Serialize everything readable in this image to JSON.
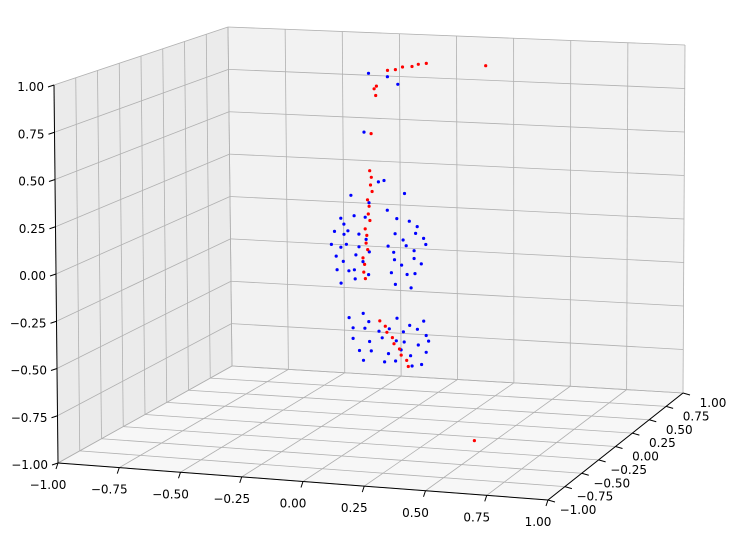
{
  "chart_data": {
    "type": "scatter3d",
    "title": "",
    "xlabel": "",
    "ylabel": "",
    "zlabel": "",
    "xlim": [
      -1,
      1
    ],
    "ylim": [
      -1,
      1
    ],
    "zlim": [
      -1,
      1
    ],
    "grid": true,
    "x_ticks": [
      "−1.00",
      "−0.75",
      "−0.50",
      "−0.25",
      "0.00",
      "0.25",
      "0.50",
      "0.75",
      "1.00"
    ],
    "y_ticks": [
      "−1.00",
      "−0.75",
      "−0.50",
      "−0.25",
      "0.00",
      "0.25",
      "0.50",
      "0.75",
      "1.00"
    ],
    "z_ticks": [
      "−1.00",
      "−0.75",
      "−0.50",
      "−0.25",
      "0.00",
      "0.25",
      "0.50",
      "0.75",
      "1.00"
    ],
    "series": [
      {
        "color": "#0000ff",
        "points": [
          [
            -0.05,
            0.02,
            0.95
          ],
          [
            0.02,
            0.05,
            0.93
          ],
          [
            0.08,
            0.0,
            0.9
          ],
          [
            -0.08,
            0.05,
            0.62
          ],
          [
            -0.02,
            0.05,
            0.35
          ],
          [
            0.02,
            0.0,
            0.37
          ],
          [
            -0.12,
            0.0,
            0.28
          ],
          [
            0.1,
            0.02,
            0.3
          ],
          [
            0.05,
            -0.05,
            0.22
          ],
          [
            -0.05,
            0.02,
            0.24
          ],
          [
            -0.18,
            0.05,
            0.14
          ],
          [
            -0.15,
            0.0,
            0.12
          ],
          [
            -0.12,
            0.04,
            0.16
          ],
          [
            -0.08,
            0.06,
            0.15
          ],
          [
            0.12,
            0.02,
            0.15
          ],
          [
            0.08,
            -0.02,
            0.17
          ],
          [
            0.15,
            0.03,
            0.12
          ],
          [
            -0.2,
            0.03,
            0.07
          ],
          [
            -0.17,
            0.06,
            0.05
          ],
          [
            -0.14,
            0.02,
            0.08
          ],
          [
            -0.1,
            0.04,
            0.06
          ],
          [
            -0.06,
            0.01,
            0.04
          ],
          [
            0.05,
            0.05,
            0.07
          ],
          [
            0.1,
            0.0,
            0.05
          ],
          [
            0.14,
            0.04,
            0.08
          ],
          [
            0.18,
            0.02,
            0.06
          ],
          [
            -0.21,
            0.02,
            0.0
          ],
          [
            -0.18,
            0.05,
            -0.02
          ],
          [
            -0.14,
            0.0,
            0.01
          ],
          [
            -0.1,
            0.04,
            -0.01
          ],
          [
            -0.05,
            0.02,
            -0.03
          ],
          [
            0.02,
            0.05,
            0.0
          ],
          [
            0.06,
            0.0,
            -0.02
          ],
          [
            0.1,
            0.04,
            0.01
          ],
          [
            0.14,
            0.02,
            -0.01
          ],
          [
            0.18,
            0.05,
            0.02
          ],
          [
            -0.2,
            0.05,
            -0.07
          ],
          [
            -0.16,
            0.02,
            -0.09
          ],
          [
            -0.12,
            0.06,
            -0.06
          ],
          [
            -0.07,
            0.0,
            -0.08
          ],
          [
            0.05,
            0.04,
            -0.07
          ],
          [
            0.09,
            0.01,
            -0.09
          ],
          [
            0.13,
            0.05,
            -0.06
          ],
          [
            0.17,
            0.02,
            -0.08
          ],
          [
            -0.19,
            0.03,
            -0.14
          ],
          [
            -0.15,
            0.06,
            -0.15
          ],
          [
            -0.11,
            0.01,
            -0.13
          ],
          [
            -0.06,
            0.04,
            -0.16
          ],
          [
            0.04,
            0.03,
            -0.14
          ],
          [
            0.1,
            0.05,
            -0.15
          ],
          [
            0.15,
            0.0,
            -0.13
          ],
          [
            -0.17,
            0.02,
            -0.21
          ],
          [
            -0.12,
            0.05,
            -0.19
          ],
          [
            0.06,
            0.02,
            -0.2
          ],
          [
            0.12,
            0.04,
            -0.22
          ],
          [
            -0.14,
            0.03,
            -0.4
          ],
          [
            -0.09,
            0.06,
            -0.38
          ],
          [
            -0.05,
            0.01,
            -0.41
          ],
          [
            0.06,
            0.04,
            -0.39
          ],
          [
            0.12,
            0.02,
            -0.42
          ],
          [
            0.17,
            0.05,
            -0.4
          ],
          [
            -0.13,
            0.05,
            -0.46
          ],
          [
            -0.07,
            0.02,
            -0.45
          ],
          [
            -0.02,
            0.05,
            -0.47
          ],
          [
            0.04,
            0.0,
            -0.44
          ],
          [
            0.09,
            0.03,
            -0.46
          ],
          [
            0.14,
            0.06,
            -0.45
          ],
          [
            0.19,
            0.02,
            -0.47
          ],
          [
            -0.12,
            0.02,
            -0.51
          ],
          [
            -0.06,
            0.05,
            -0.53
          ],
          [
            0.0,
            0.03,
            -0.5
          ],
          [
            0.05,
            0.06,
            -0.52
          ],
          [
            0.1,
            0.01,
            -0.51
          ],
          [
            0.15,
            0.04,
            -0.53
          ],
          [
            0.2,
            0.02,
            -0.5
          ],
          [
            -0.1,
            0.04,
            -0.58
          ],
          [
            -0.04,
            0.01,
            -0.57
          ],
          [
            0.02,
            0.05,
            -0.59
          ],
          [
            0.08,
            0.03,
            -0.56
          ],
          [
            0.13,
            0.0,
            -0.58
          ],
          [
            0.18,
            0.05,
            -0.57
          ],
          [
            -0.08,
            0.03,
            -0.63
          ],
          [
            0.0,
            0.06,
            -0.64
          ],
          [
            0.06,
            0.02,
            -0.62
          ],
          [
            0.12,
            0.05,
            -0.65
          ],
          [
            0.17,
            0.02,
            -0.63
          ]
        ]
      },
      {
        "color": "#ff0000",
        "points": [
          [
            0.2,
            0.0,
            1.02
          ],
          [
            0.14,
            0.0,
            1.0
          ],
          [
            0.16,
            0.02,
            1.01
          ],
          [
            0.09,
            0.03,
            0.99
          ],
          [
            0.07,
            0.0,
            0.98
          ],
          [
            0.03,
            0.02,
            0.97
          ],
          [
            0.45,
            0.0,
            1.02
          ],
          [
            -0.02,
            0.03,
            0.88
          ],
          [
            -0.02,
            0.0,
            0.87
          ],
          [
            -0.02,
            0.02,
            0.83
          ],
          [
            -0.04,
            0.02,
            0.62
          ],
          [
            -0.04,
            0.0,
            0.42
          ],
          [
            -0.04,
            0.02,
            0.38
          ],
          [
            -0.04,
            0.01,
            0.34
          ],
          [
            -0.04,
            0.03,
            0.3
          ],
          [
            -0.05,
            0.0,
            0.26
          ],
          [
            -0.05,
            0.02,
            0.22
          ],
          [
            -0.05,
            0.01,
            0.18
          ],
          [
            -0.05,
            0.03,
            0.14
          ],
          [
            -0.06,
            0.0,
            0.1
          ],
          [
            -0.06,
            0.02,
            0.06
          ],
          [
            -0.06,
            0.01,
            0.02
          ],
          [
            -0.06,
            0.03,
            -0.02
          ],
          [
            -0.07,
            0.0,
            -0.06
          ],
          [
            -0.07,
            0.02,
            -0.1
          ],
          [
            -0.07,
            0.01,
            -0.14
          ],
          [
            -0.07,
            0.03,
            -0.18
          ],
          [
            0.0,
            0.0,
            -0.4
          ],
          [
            0.02,
            0.01,
            -0.43
          ],
          [
            0.03,
            0.0,
            -0.46
          ],
          [
            0.05,
            0.01,
            -0.49
          ],
          [
            0.06,
            0.0,
            -0.52
          ],
          [
            0.08,
            0.01,
            -0.55
          ],
          [
            0.09,
            0.0,
            -0.58
          ],
          [
            0.11,
            0.01,
            -0.61
          ],
          [
            0.12,
            0.0,
            -0.64
          ],
          [
            0.4,
            0.0,
            -1.02
          ]
        ]
      }
    ]
  }
}
